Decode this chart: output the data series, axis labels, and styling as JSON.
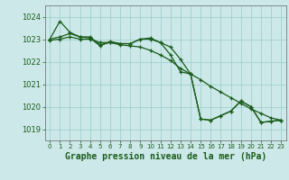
{
  "title": "Graphe pression niveau de la mer (hPa)",
  "bg_color": "#cce8e8",
  "grid_color": "#99cccc",
  "line_color": "#1a5c1a",
  "ylim": [
    1018.5,
    1024.5
  ],
  "yticks": [
    1019,
    1020,
    1021,
    1022,
    1023,
    1024
  ],
  "x_labels": [
    "0",
    "1",
    "2",
    "3",
    "4",
    "5",
    "6",
    "7",
    "8",
    "9",
    "10",
    "11",
    "12",
    "13",
    "14",
    "15",
    "16",
    "17",
    "18",
    "19",
    "20",
    "21",
    "22",
    "23"
  ],
  "line1_y": [
    1023.0,
    1023.8,
    1023.3,
    1023.1,
    1023.1,
    1022.75,
    1022.85,
    1022.8,
    1022.8,
    1023.0,
    1023.05,
    1022.85,
    1022.3,
    1021.55,
    1021.45,
    1019.45,
    1019.4,
    1019.6,
    1019.8,
    1020.25,
    1020.0,
    1019.3,
    1019.35,
    1019.4
  ],
  "line2_y": [
    1023.0,
    1023.1,
    1023.25,
    1023.1,
    1023.05,
    1022.7,
    1022.9,
    1022.8,
    1022.8,
    1023.0,
    1023.0,
    1022.85,
    1022.65,
    1022.1,
    1021.45,
    1019.45,
    1019.4,
    1019.6,
    1019.8,
    1020.25,
    1020.0,
    1019.3,
    1019.35,
    1019.4
  ],
  "line3_y": [
    1022.95,
    1023.0,
    1023.1,
    1023.0,
    1023.0,
    1022.85,
    1022.85,
    1022.75,
    1022.7,
    1022.65,
    1022.5,
    1022.3,
    1022.05,
    1021.7,
    1021.45,
    1021.2,
    1020.9,
    1020.65,
    1020.4,
    1020.15,
    1019.9,
    1019.7,
    1019.5,
    1019.4
  ]
}
